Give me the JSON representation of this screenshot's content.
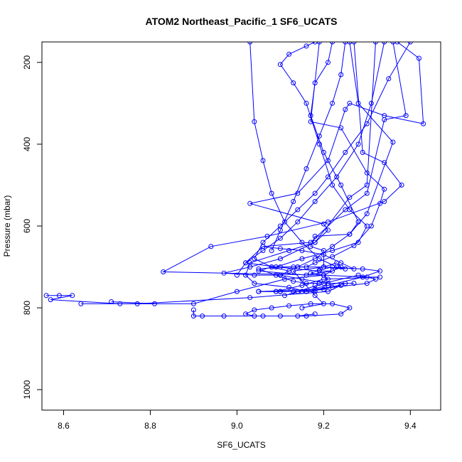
{
  "chart_data": {
    "type": "line",
    "title": "ATOM2 Northeast_Pacific_1 SF6_UCATS",
    "xlabel": "SF6_UCATS",
    "ylabel": "Pressure (mbar)",
    "xlim": [
      8.55,
      9.47
    ],
    "ylim": [
      1050,
      150
    ],
    "y_reversed": true,
    "x_ticks": [
      8.6,
      8.8,
      9.0,
      9.2,
      9.4
    ],
    "x_tick_labels": [
      "8.6",
      "8.8",
      "9.0",
      "9.2",
      "9.4"
    ],
    "y_ticks": [
      200,
      400,
      600,
      800,
      1000
    ],
    "y_tick_labels": [
      "200",
      "400",
      "600",
      "800",
      "1000"
    ],
    "series_color": "#0000ff",
    "marker": "open-circle",
    "grid": false,
    "series": [
      {
        "x": [
          9.19,
          9.17,
          9.24,
          9.3,
          9.34,
          9.33,
          9.31,
          9.27,
          9.22,
          9.18,
          9.16,
          9.13,
          9.1,
          9.05,
          9.09,
          9.13,
          9.16,
          9.19,
          9.21,
          9.2,
          9.17,
          9.19,
          9.22
        ],
        "y": [
          150,
          345,
          360,
          470,
          510,
          545,
          600,
          648,
          675,
          690,
          700,
          700,
          700,
          705,
          720,
          735,
          740,
          740,
          730,
          720,
          715,
          708,
          700
        ]
      },
      {
        "x": [
          9.27,
          9.29,
          9.34,
          9.38,
          9.34,
          9.21,
          9.07,
          8.94,
          8.83,
          9.2,
          9.3,
          9.33,
          9.2,
          9.15,
          9.09,
          9.05,
          9.1,
          9.15,
          9.2,
          9.25
        ],
        "y": [
          150,
          420,
          445,
          500,
          540,
          590,
          625,
          650,
          712,
          720,
          725,
          725,
          730,
          745,
          760,
          760,
          760,
          760,
          755,
          740
        ]
      },
      {
        "x": [
          9.37,
          9.42,
          9.43,
          9.34,
          9.26,
          9.25,
          9.21,
          9.14,
          9.03,
          9.2,
          9.21,
          9.18,
          9.12,
          9.03,
          9.02,
          9.04,
          9.12,
          9.16,
          9.18,
          9.18
        ],
        "y": [
          150,
          190,
          350,
          330,
          300,
          315,
          440,
          520,
          545,
          595,
          610,
          640,
          660,
          690,
          720,
          740,
          750,
          760,
          760,
          745
        ]
      },
      {
        "x": [
          9.26,
          9.28,
          9.36,
          9.3,
          9.26,
          9.18,
          9.17,
          9.2,
          9.2,
          9.29,
          9.33,
          9.29,
          9.21,
          9.15,
          9.13,
          9.1,
          9.09,
          9.05
        ],
        "y": [
          150,
          300,
          395,
          570,
          620,
          625,
          650,
          660,
          700,
          705,
          710,
          725,
          745,
          760,
          760,
          760,
          760,
          760
        ]
      },
      {
        "x": [
          8.56,
          8.59,
          8.62,
          8.57,
          8.73,
          8.9,
          9.0,
          9.11,
          9.2,
          9.24,
          9.23,
          9.2,
          9.13,
          9.18,
          9.2,
          9.15
        ],
        "y": [
          770,
          770,
          770,
          780,
          790,
          790,
          760,
          730,
          720,
          700,
          690,
          700,
          710,
          770,
          790,
          800
        ]
      },
      {
        "x": [
          8.71,
          8.81,
          8.64,
          8.77,
          9.03,
          9.21,
          9.24,
          9.18,
          9.05,
          9.1,
          9.16,
          9.22,
          9.3,
          9.32,
          9.28,
          9.2,
          9.14,
          9.11
        ],
        "y": [
          785,
          790,
          790,
          790,
          775,
          760,
          745,
          755,
          760,
          760,
          760,
          750,
          740,
          730,
          720,
          740,
          760,
          770
        ]
      },
      {
        "x": [
          9.36,
          9.39,
          9.34,
          9.3,
          9.25,
          9.17,
          9.06,
          9.02,
          9.09,
          9.19,
          9.22,
          9.16,
          9.05,
          9.08,
          9.14,
          9.2,
          9.25
        ],
        "y": [
          150,
          330,
          340,
          520,
          560,
          640,
          650,
          690,
          700,
          710,
          710,
          720,
          710,
          700,
          700,
          700,
          705
        ]
      },
      {
        "x": [
          9.32,
          9.3,
          9.26,
          9.18,
          9.1,
          9.03,
          8.97,
          9.04,
          9.1,
          9.15,
          9.21,
          9.27
        ],
        "y": [
          150,
          500,
          530,
          640,
          680,
          700,
          715,
          720,
          720,
          730,
          740,
          740
        ]
      },
      {
        "x": [
          9.18,
          9.16,
          9.12,
          9.1,
          9.13,
          9.16,
          9.19,
          9.22,
          9.26,
          9.3,
          9.28,
          9.22,
          9.15,
          9.09
        ],
        "y": [
          150,
          160,
          180,
          205,
          250,
          300,
          400,
          500,
          560,
          600,
          640,
          660,
          680,
          700
        ]
      },
      {
        "x": [
          9.4,
          9.35,
          9.3,
          9.25,
          9.21,
          9.18,
          9.14,
          9.1,
          9.06,
          9.04,
          9.08,
          9.12
        ],
        "y": [
          150,
          240,
          350,
          420,
          480,
          520,
          560,
          600,
          640,
          680,
          700,
          710
        ]
      },
      {
        "x": [
          9.22,
          9.21,
          9.18,
          9.17,
          9.2,
          9.24,
          9.28,
          9.26,
          9.22,
          9.18,
          9.14,
          9.1
        ],
        "y": [
          150,
          200,
          250,
          330,
          420,
          500,
          590,
          620,
          650,
          680,
          700,
          720
        ]
      },
      {
        "x": [
          9.03,
          9.04,
          9.06,
          9.08,
          9.11,
          9.15,
          9.19,
          9.23,
          9.27,
          9.24,
          9.2,
          9.15,
          9.1,
          9.06
        ],
        "y": [
          150,
          345,
          440,
          520,
          590,
          640,
          680,
          700,
          705,
          690,
          670,
          660,
          655,
          650
        ]
      },
      {
        "x": [
          8.9,
          8.9,
          8.92,
          8.97,
          9.06,
          9.16,
          9.24,
          9.26,
          9.22,
          9.17,
          9.12,
          9.08,
          9.04,
          9.02,
          9.04,
          9.1,
          9.14,
          9.18
        ],
        "y": [
          805,
          820,
          820,
          820,
          820,
          820,
          815,
          800,
          790,
          790,
          795,
          800,
          805,
          815,
          820,
          820,
          820,
          815
        ]
      },
      {
        "x": [
          9.34,
          9.31,
          9.28,
          9.23,
          9.18,
          9.14,
          9.1,
          9.06,
          9.02,
          9.0
        ],
        "y": [
          150,
          300,
          400,
          480,
          540,
          590,
          630,
          660,
          690,
          720
        ]
      },
      {
        "x": [
          9.25,
          9.24,
          9.22,
          9.19,
          9.16,
          9.13,
          9.1,
          9.08
        ],
        "y": [
          150,
          230,
          300,
          380,
          460,
          540,
          610,
          660
        ]
      }
    ]
  }
}
